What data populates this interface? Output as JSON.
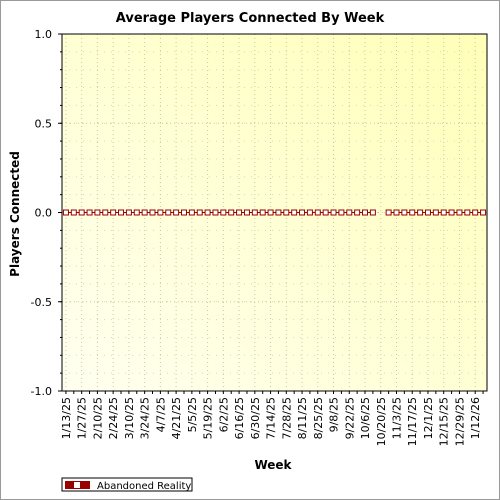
{
  "chart_data": {
    "type": "line",
    "title": "Average Players Connected By Week",
    "xlabel": "Week",
    "ylabel": "Players Connected",
    "ylim": [
      -1.0,
      1.0
    ],
    "yticks": [
      "1.0",
      "0.5",
      "0.0",
      "-0.5",
      "-1.0"
    ],
    "x": [
      "1/13/25",
      "1/20/25",
      "1/27/25",
      "2/3/25",
      "2/10/25",
      "2/17/25",
      "2/24/25",
      "3/3/25",
      "3/10/25",
      "3/17/25",
      "3/24/25",
      "3/31/25",
      "4/7/25",
      "4/14/25",
      "4/21/25",
      "4/28/25",
      "5/5/25",
      "5/12/25",
      "5/19/25",
      "5/26/25",
      "6/2/25",
      "6/9/25",
      "6/16/25",
      "6/23/25",
      "6/30/25",
      "7/7/25",
      "7/14/25",
      "7/21/25",
      "7/28/25",
      "8/4/25",
      "8/11/25",
      "8/18/25",
      "8/25/25",
      "9/1/25",
      "9/8/25",
      "9/15/25",
      "9/22/25",
      "9/29/25",
      "10/6/25",
      "10/13/25",
      "10/20/25",
      "10/27/25",
      "11/3/25",
      "11/10/25",
      "11/17/25",
      "11/24/25",
      "12/1/25",
      "12/8/25",
      "12/15/25",
      "12/22/25",
      "12/29/25",
      "1/5/26",
      "1/12/26",
      "1/19/26"
    ],
    "x_tick_labels": [
      "1/13/25",
      "1/27/25",
      "2/10/25",
      "2/24/25",
      "3/10/25",
      "3/24/25",
      "4/7/25",
      "4/21/25",
      "5/5/25",
      "5/19/25",
      "6/2/25",
      "6/16/25",
      "6/30/25",
      "7/14/25",
      "7/28/25",
      "8/11/25",
      "8/25/25",
      "9/8/25",
      "9/22/25",
      "10/6/25",
      "10/20/25",
      "11/3/25",
      "11/17/25",
      "12/1/25",
      "12/15/25",
      "12/29/25",
      "1/12/26"
    ],
    "series": [
      {
        "name": "Abandoned Reality",
        "color": "#990000",
        "values": [
          0,
          0,
          0,
          0,
          0,
          0,
          0,
          0,
          0,
          0,
          0,
          0,
          0,
          0,
          0,
          0,
          0,
          0,
          0,
          0,
          0,
          0,
          0,
          0,
          0,
          0,
          0,
          0,
          0,
          0,
          0,
          0,
          0,
          0,
          0,
          0,
          0,
          0,
          0,
          0,
          0,
          0,
          0,
          0,
          0,
          0,
          0,
          0,
          0,
          0,
          0,
          0,
          0,
          0
        ],
        "missing_after": "10/13/25"
      }
    ],
    "grid": true,
    "legend_position": "bottom-left",
    "plot_background": [
      "#fffff0",
      "#ffffb8"
    ]
  }
}
